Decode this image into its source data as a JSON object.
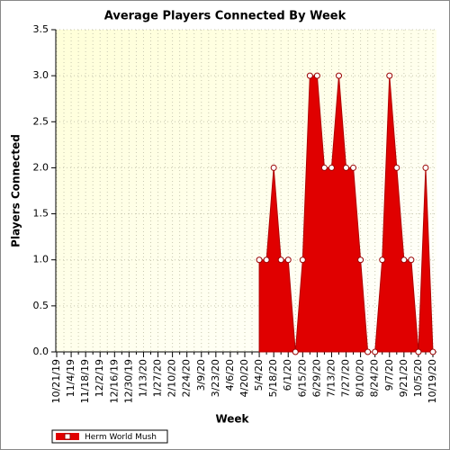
{
  "chart_data": {
    "type": "area",
    "title": "Average Players Connected By Week",
    "x_label": "Week",
    "y_label": "Players Connected",
    "categories": [
      "10/21/19",
      null,
      "11/4/19",
      null,
      "11/18/19",
      null,
      "12/2/19",
      null,
      "12/16/19",
      null,
      "12/30/19",
      null,
      "1/13/20",
      null,
      "1/27/20",
      null,
      "2/10/20",
      null,
      "2/24/20",
      null,
      "3/9/20",
      null,
      "3/23/20",
      null,
      "4/6/20",
      null,
      "4/20/20",
      null,
      "5/4/20",
      null,
      "5/18/20",
      null,
      "6/1/20",
      null,
      "6/15/20",
      null,
      "6/29/20",
      null,
      "7/13/20",
      null,
      "7/27/20",
      null,
      "8/10/20",
      null,
      "8/24/20",
      null,
      "9/7/20",
      null,
      "9/21/20",
      null,
      "10/5/20",
      null,
      "10/19/20"
    ],
    "series": [
      {
        "name": "Herm World Mush",
        "color": "#e00000",
        "values": [
          null,
          null,
          null,
          null,
          null,
          null,
          null,
          null,
          null,
          null,
          null,
          null,
          null,
          null,
          null,
          null,
          null,
          null,
          null,
          null,
          null,
          null,
          null,
          null,
          null,
          null,
          null,
          null,
          1.0,
          1.0,
          2.0,
          1.0,
          1.0,
          0,
          1.0,
          3.0,
          3.0,
          2.0,
          2.0,
          3.0,
          2.0,
          2.0,
          1.0,
          0,
          0,
          1.0,
          3.0,
          2.0,
          1.0,
          1.0,
          0,
          2.0,
          0
        ]
      }
    ],
    "ylim": [
      0,
      3.5
    ],
    "yticks": [
      {
        "value": 0,
        "label": "0.0"
      },
      {
        "value": 0.5,
        "label": "0.5"
      },
      {
        "value": 1,
        "label": "1.0"
      },
      {
        "value": 1.5,
        "label": "1.5"
      },
      {
        "value": 2,
        "label": "2.0"
      },
      {
        "value": 2.5,
        "label": "2.5"
      },
      {
        "value": 3,
        "label": "3.0"
      },
      {
        "value": 3.5,
        "label": "3.5"
      }
    ],
    "grid": true,
    "legend": "bottom-left"
  }
}
